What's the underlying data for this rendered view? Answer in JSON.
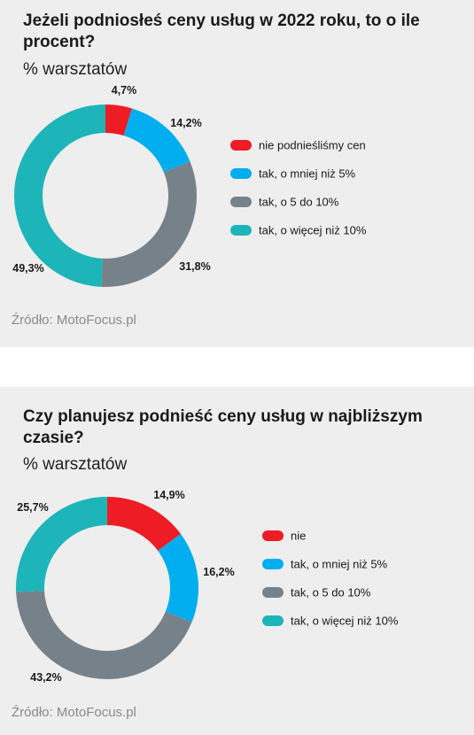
{
  "colors": {
    "red": "#ee1c25",
    "blue": "#00aeef",
    "gray": "#77818a",
    "teal": "#1db5ba"
  },
  "panels": [
    {
      "title": "Jeżeli podniosłeś ceny usług w 2022 roku, to o ile procent?",
      "subtitle": "% warsztatów",
      "source": "Źródło: MotoFocus.pl"
    },
    {
      "title": "Czy planujesz podnieść ceny usług w najbliższym czasie?",
      "subtitle": "% warsztatów",
      "source": "Źródło: MotoFocus.pl"
    }
  ],
  "chart_data": [
    {
      "type": "pie",
      "donut": true,
      "title": "Jeżeli podniosłeś ceny usług w 2022 roku, to o ile procent?",
      "subtitle": "% warsztatów",
      "legend_position": "right",
      "slices": [
        {
          "label": "nie podnieśliśmy cen",
          "value": 4.7,
          "display": "4,7%",
          "color": "#ee1c25"
        },
        {
          "label": "tak, o mniej niż 5%",
          "value": 14.2,
          "display": "14,2%",
          "color": "#00aeef"
        },
        {
          "label": "tak, o 5 do 10%",
          "value": 31.8,
          "display": "31,8%",
          "color": "#77818a"
        },
        {
          "label": "tak, o więcej niż 10%",
          "value": 49.3,
          "display": "49,3%",
          "color": "#1db5ba"
        }
      ]
    },
    {
      "type": "pie",
      "donut": true,
      "title": "Czy planujesz podnieść ceny usług w najbliższym czasie?",
      "subtitle": "% warsztatów",
      "legend_position": "right",
      "slices": [
        {
          "label": "nie",
          "value": 14.9,
          "display": "14,9%",
          "color": "#ee1c25"
        },
        {
          "label": "tak, o mniej niż 5%",
          "value": 16.2,
          "display": "16,2%",
          "color": "#00aeef"
        },
        {
          "label": "tak, o 5 do 10%",
          "value": 43.2,
          "display": "43,2%",
          "color": "#77818a"
        },
        {
          "label": "tak, o więcej niż 10%",
          "value": 25.7,
          "display": "25,7%",
          "color": "#1db5ba"
        }
      ]
    }
  ]
}
